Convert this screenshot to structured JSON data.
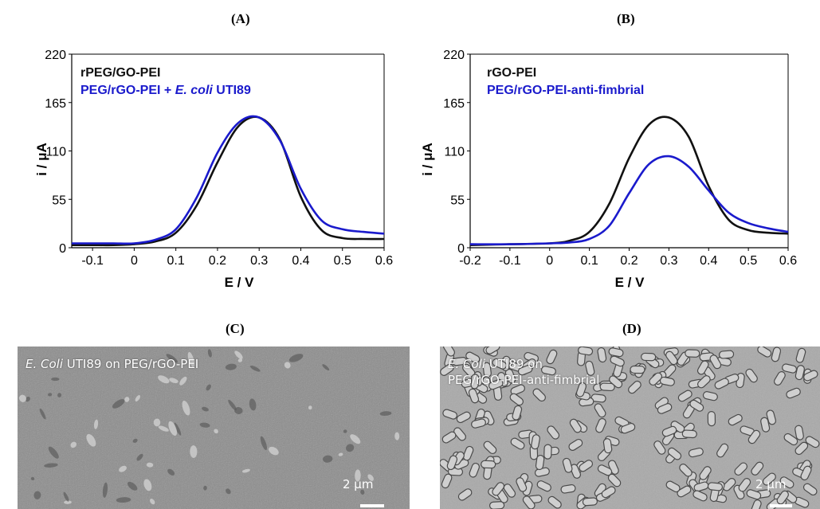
{
  "panels": {
    "A": {
      "letter": "(A)"
    },
    "B": {
      "letter": "(B)"
    },
    "C": {
      "letter": "(C)",
      "label_species": "E. Coli",
      "label_rest": " UTI89 on PEG/rGO-PEI",
      "scale": "2 μm"
    },
    "D": {
      "letter": "(D)",
      "label_species": "E. Coli",
      "label_rest_1": " UTI89 on",
      "label_line2": "PEG/rGO-PEI-anti-fimbrial",
      "scale": "2 μm"
    }
  },
  "colors": {
    "black_series": "#111111",
    "blue_series": "#1a1acc"
  },
  "chart_data": [
    {
      "type": "line",
      "panel": "(A)",
      "xlabel": "E / V",
      "ylabel": "i / μA",
      "xlim": [
        -0.15,
        0.6
      ],
      "ylim": [
        0,
        220
      ],
      "xticks": [
        -0.1,
        0,
        0.1,
        0.2,
        0.3,
        0.4,
        0.5,
        0.6
      ],
      "xtick_labels": [
        "-0.1",
        "0",
        "0.1",
        "0.2",
        "0.3",
        "0.4",
        "0.5",
        "0.6"
      ],
      "yticks": [
        0,
        55,
        110,
        165,
        220
      ],
      "ytick_labels": [
        "0",
        "55",
        "110",
        "165",
        "220"
      ],
      "legend_placement": "top-left",
      "series": [
        {
          "name": "rPEG/GO-PEI",
          "color": "#111111",
          "x": [
            -0.15,
            -0.1,
            -0.05,
            0,
            0.05,
            0.1,
            0.15,
            0.2,
            0.25,
            0.3,
            0.35,
            0.4,
            0.45,
            0.5,
            0.55,
            0.6
          ],
          "y": [
            3,
            3,
            3,
            4,
            7,
            17,
            48,
            97,
            138,
            148,
            123,
            58,
            20,
            11,
            10,
            10
          ]
        },
        {
          "name_main": "PEG/rGO-PEI + ",
          "name_italic": "E. coli",
          "name_tail": " UTI89",
          "color": "#1a1acc",
          "x": [
            -0.15,
            -0.1,
            -0.05,
            0,
            0.05,
            0.1,
            0.15,
            0.2,
            0.25,
            0.3,
            0.35,
            0.4,
            0.45,
            0.5,
            0.55,
            0.6
          ],
          "y": [
            5,
            5,
            5,
            5,
            9,
            21,
            57,
            108,
            142,
            148,
            122,
            67,
            31,
            21,
            18,
            16
          ]
        }
      ]
    },
    {
      "type": "line",
      "panel": "(B)",
      "xlabel": "E / V",
      "ylabel": "i / μA",
      "xlim": [
        -0.2,
        0.6
      ],
      "ylim": [
        0,
        220
      ],
      "xticks": [
        -0.2,
        -0.1,
        0,
        0.1,
        0.2,
        0.3,
        0.4,
        0.5,
        0.6
      ],
      "xtick_labels": [
        "-0.2",
        "-0.1",
        "0",
        "0.1",
        "0.2",
        "0.3",
        "0.4",
        "0.5",
        "0.6"
      ],
      "yticks": [
        0,
        55,
        110,
        165,
        220
      ],
      "ytick_labels": [
        "0",
        "55",
        "110",
        "165",
        "220"
      ],
      "legend_placement": "top-left",
      "series": [
        {
          "name": "rGO-PEI",
          "color": "#111111",
          "x": [
            -0.2,
            -0.1,
            0,
            0.05,
            0.1,
            0.15,
            0.2,
            0.25,
            0.3,
            0.35,
            0.4,
            0.45,
            0.5,
            0.55,
            0.6
          ],
          "y": [
            3,
            4,
            5,
            8,
            18,
            50,
            102,
            140,
            148,
            126,
            70,
            32,
            20,
            17,
            16
          ]
        },
        {
          "name": "PEG/rGO-PEI-anti-fimbrial",
          "color": "#1a1acc",
          "x": [
            -0.2,
            -0.1,
            0,
            0.05,
            0.1,
            0.15,
            0.2,
            0.25,
            0.3,
            0.35,
            0.4,
            0.45,
            0.5,
            0.55,
            0.6
          ],
          "y": [
            4,
            4,
            5,
            6,
            10,
            25,
            62,
            95,
            104,
            92,
            65,
            40,
            28,
            22,
            18
          ]
        }
      ]
    }
  ]
}
